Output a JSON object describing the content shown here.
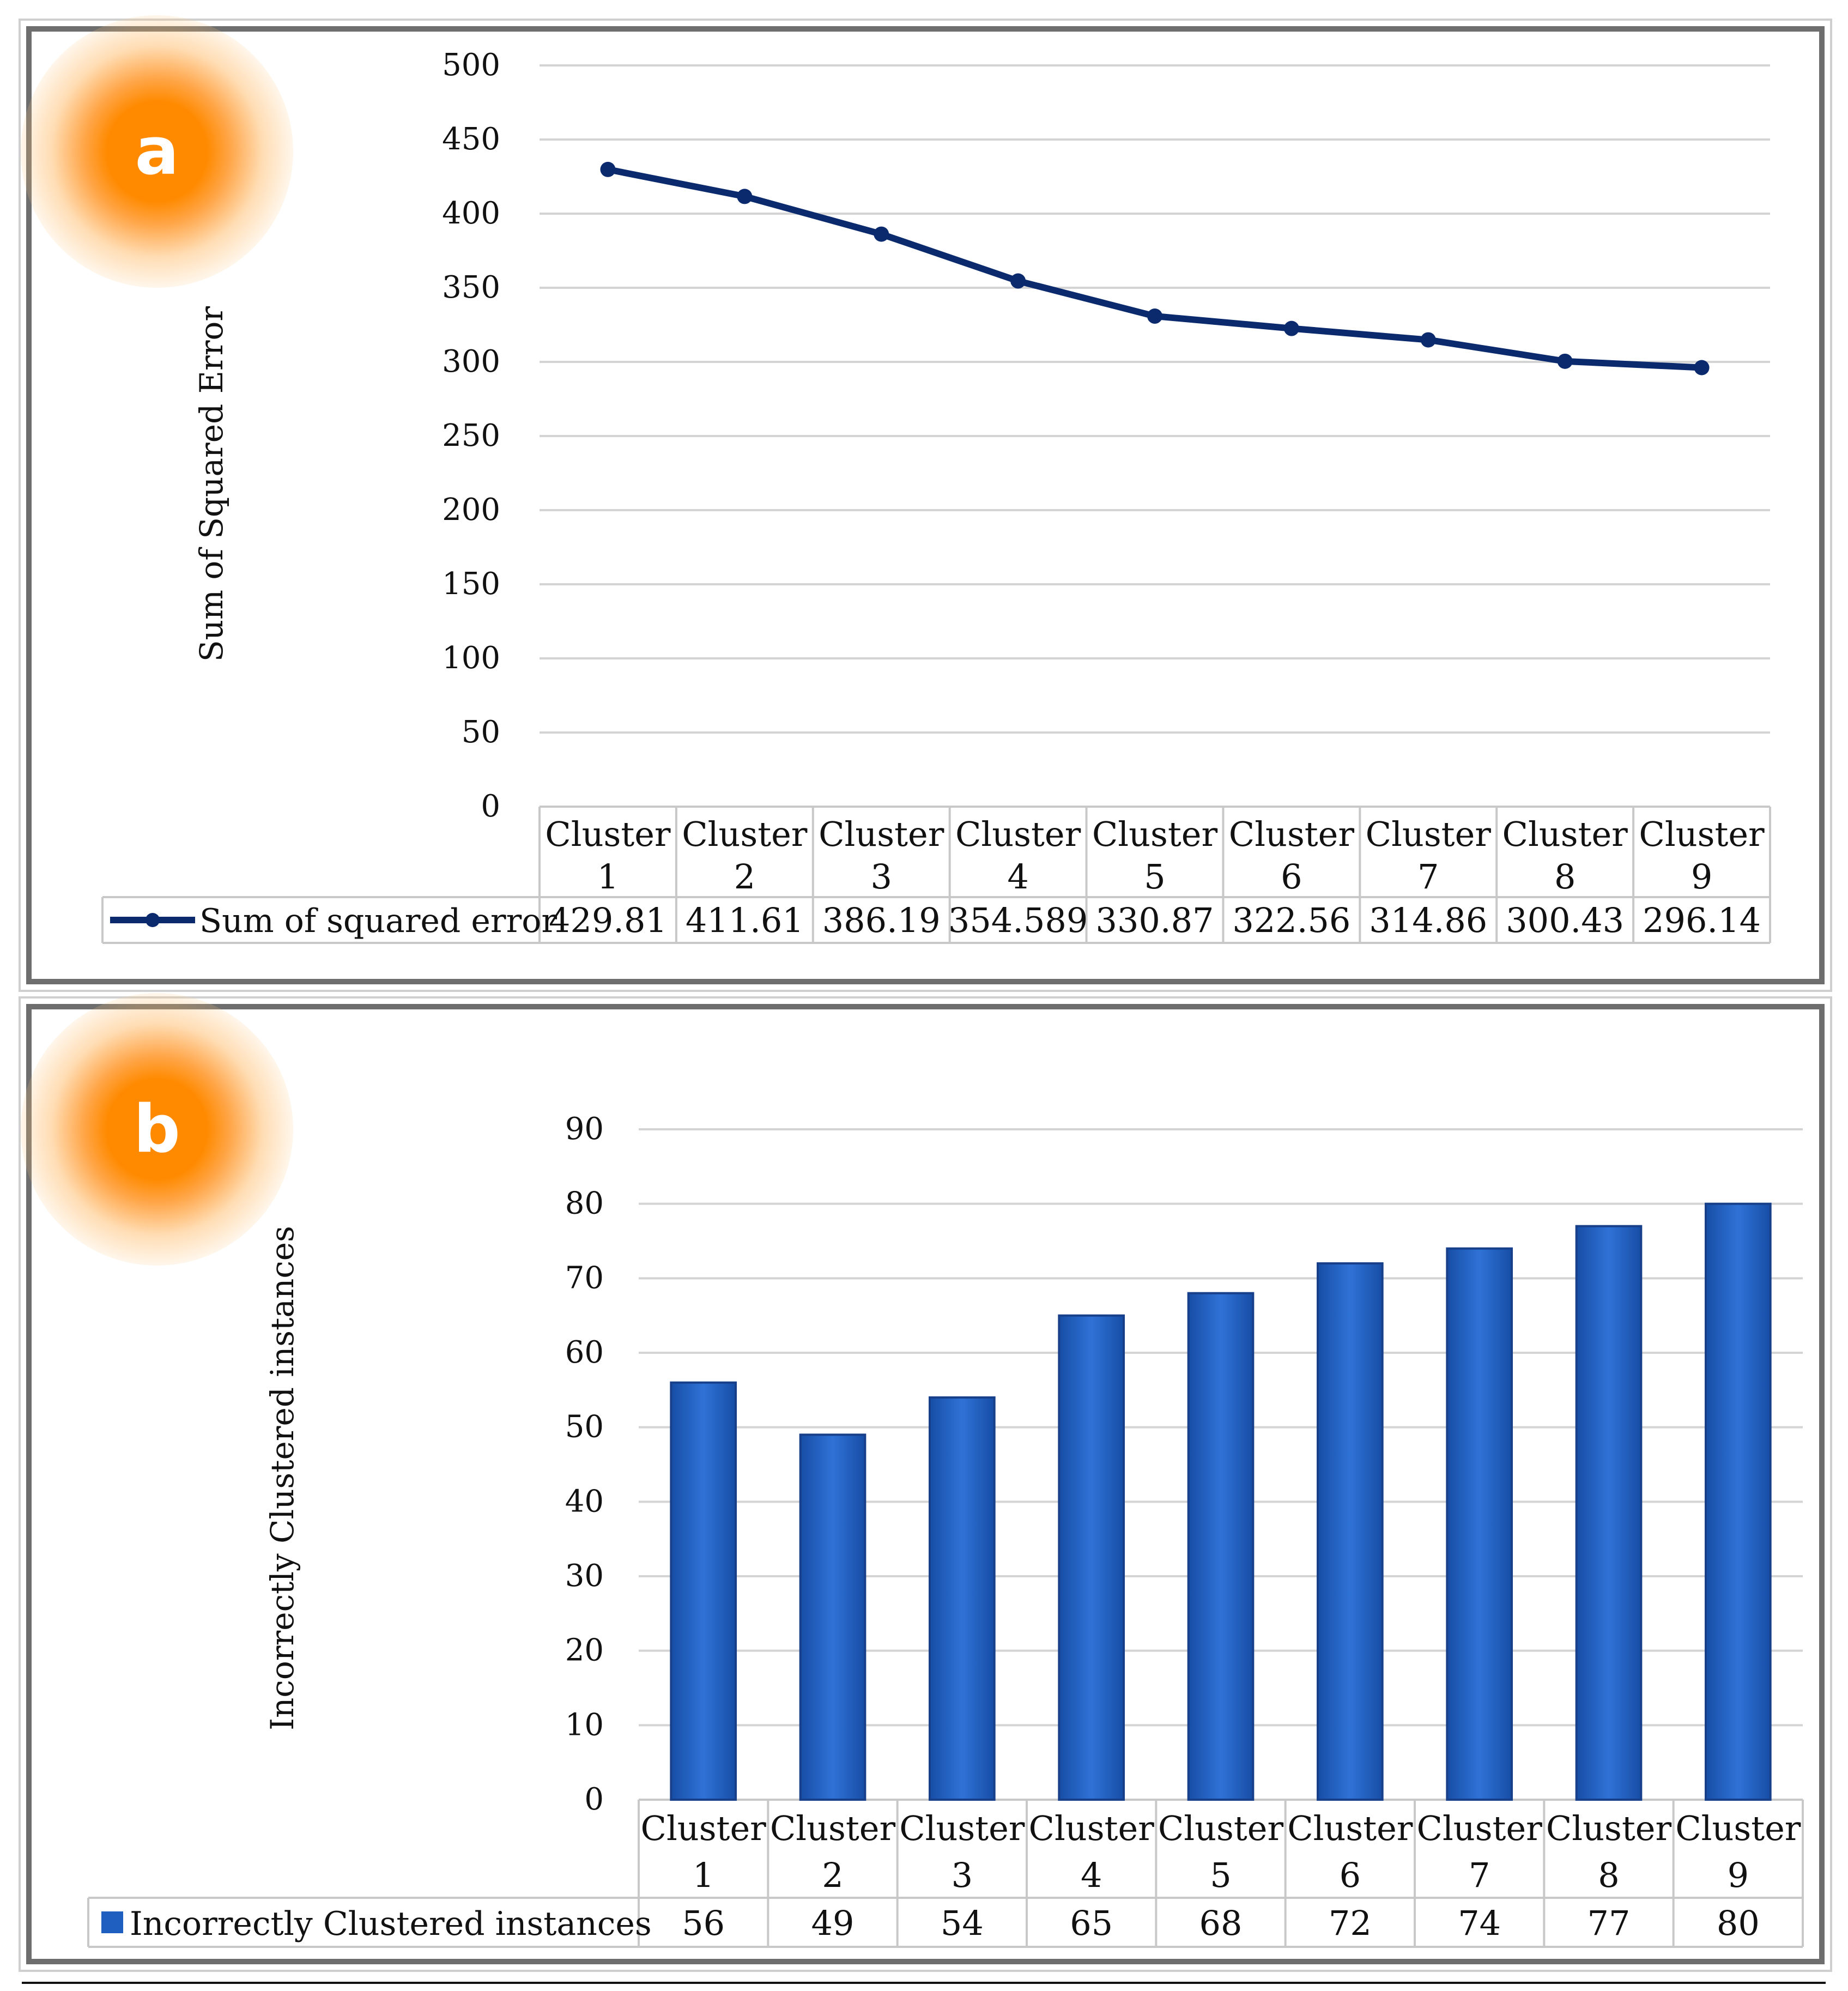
{
  "panels": [
    {
      "label": "a"
    },
    {
      "label": "b"
    }
  ],
  "chart_data": [
    {
      "type": "line",
      "categories": [
        "Cluster 1",
        "Cluster 2",
        "Cluster 3",
        "Cluster 4",
        "Cluster 5",
        "Cluster 6",
        "Cluster 7",
        "Cluster 8",
        "Cluster 9"
      ],
      "series": [
        {
          "name": "Sum of squared error",
          "values": [
            429.81,
            411.61,
            386.19,
            354.589,
            330.87,
            322.56,
            314.86,
            300.43,
            296.14
          ],
          "labels": [
            "429.81",
            "411.61",
            "386.19",
            "354.589",
            "330.87",
            "322.56",
            "314.86",
            "300.43",
            "296.14"
          ],
          "color": "#0b2a6e"
        }
      ],
      "ylabel": "Sum of Squared Error",
      "xlabel": "",
      "ylim": [
        0,
        500
      ],
      "yticks": [
        0,
        50,
        100,
        150,
        200,
        250,
        300,
        350,
        400,
        450,
        500
      ],
      "grid": true,
      "legend": "data-table"
    },
    {
      "type": "bar",
      "categories": [
        "Cluster 1",
        "Cluster 2",
        "Cluster 3",
        "Cluster 4",
        "Cluster 5",
        "Cluster 6",
        "Cluster 7",
        "Cluster 8",
        "Cluster 9"
      ],
      "series": [
        {
          "name": "Incorrectly Clustered instances",
          "values": [
            56,
            49,
            54,
            65,
            68,
            72,
            74,
            77,
            80
          ],
          "labels": [
            "56",
            "49",
            "54",
            "65",
            "68",
            "72",
            "74",
            "77",
            "80"
          ],
          "color": "#1f5fbf"
        }
      ],
      "ylabel": "Incorrectly Clustered instances",
      "xlabel": "",
      "ylim": [
        0,
        90
      ],
      "yticks": [
        0,
        10,
        20,
        30,
        40,
        50,
        60,
        70,
        80,
        90
      ],
      "grid": true,
      "legend": "data-table"
    }
  ]
}
